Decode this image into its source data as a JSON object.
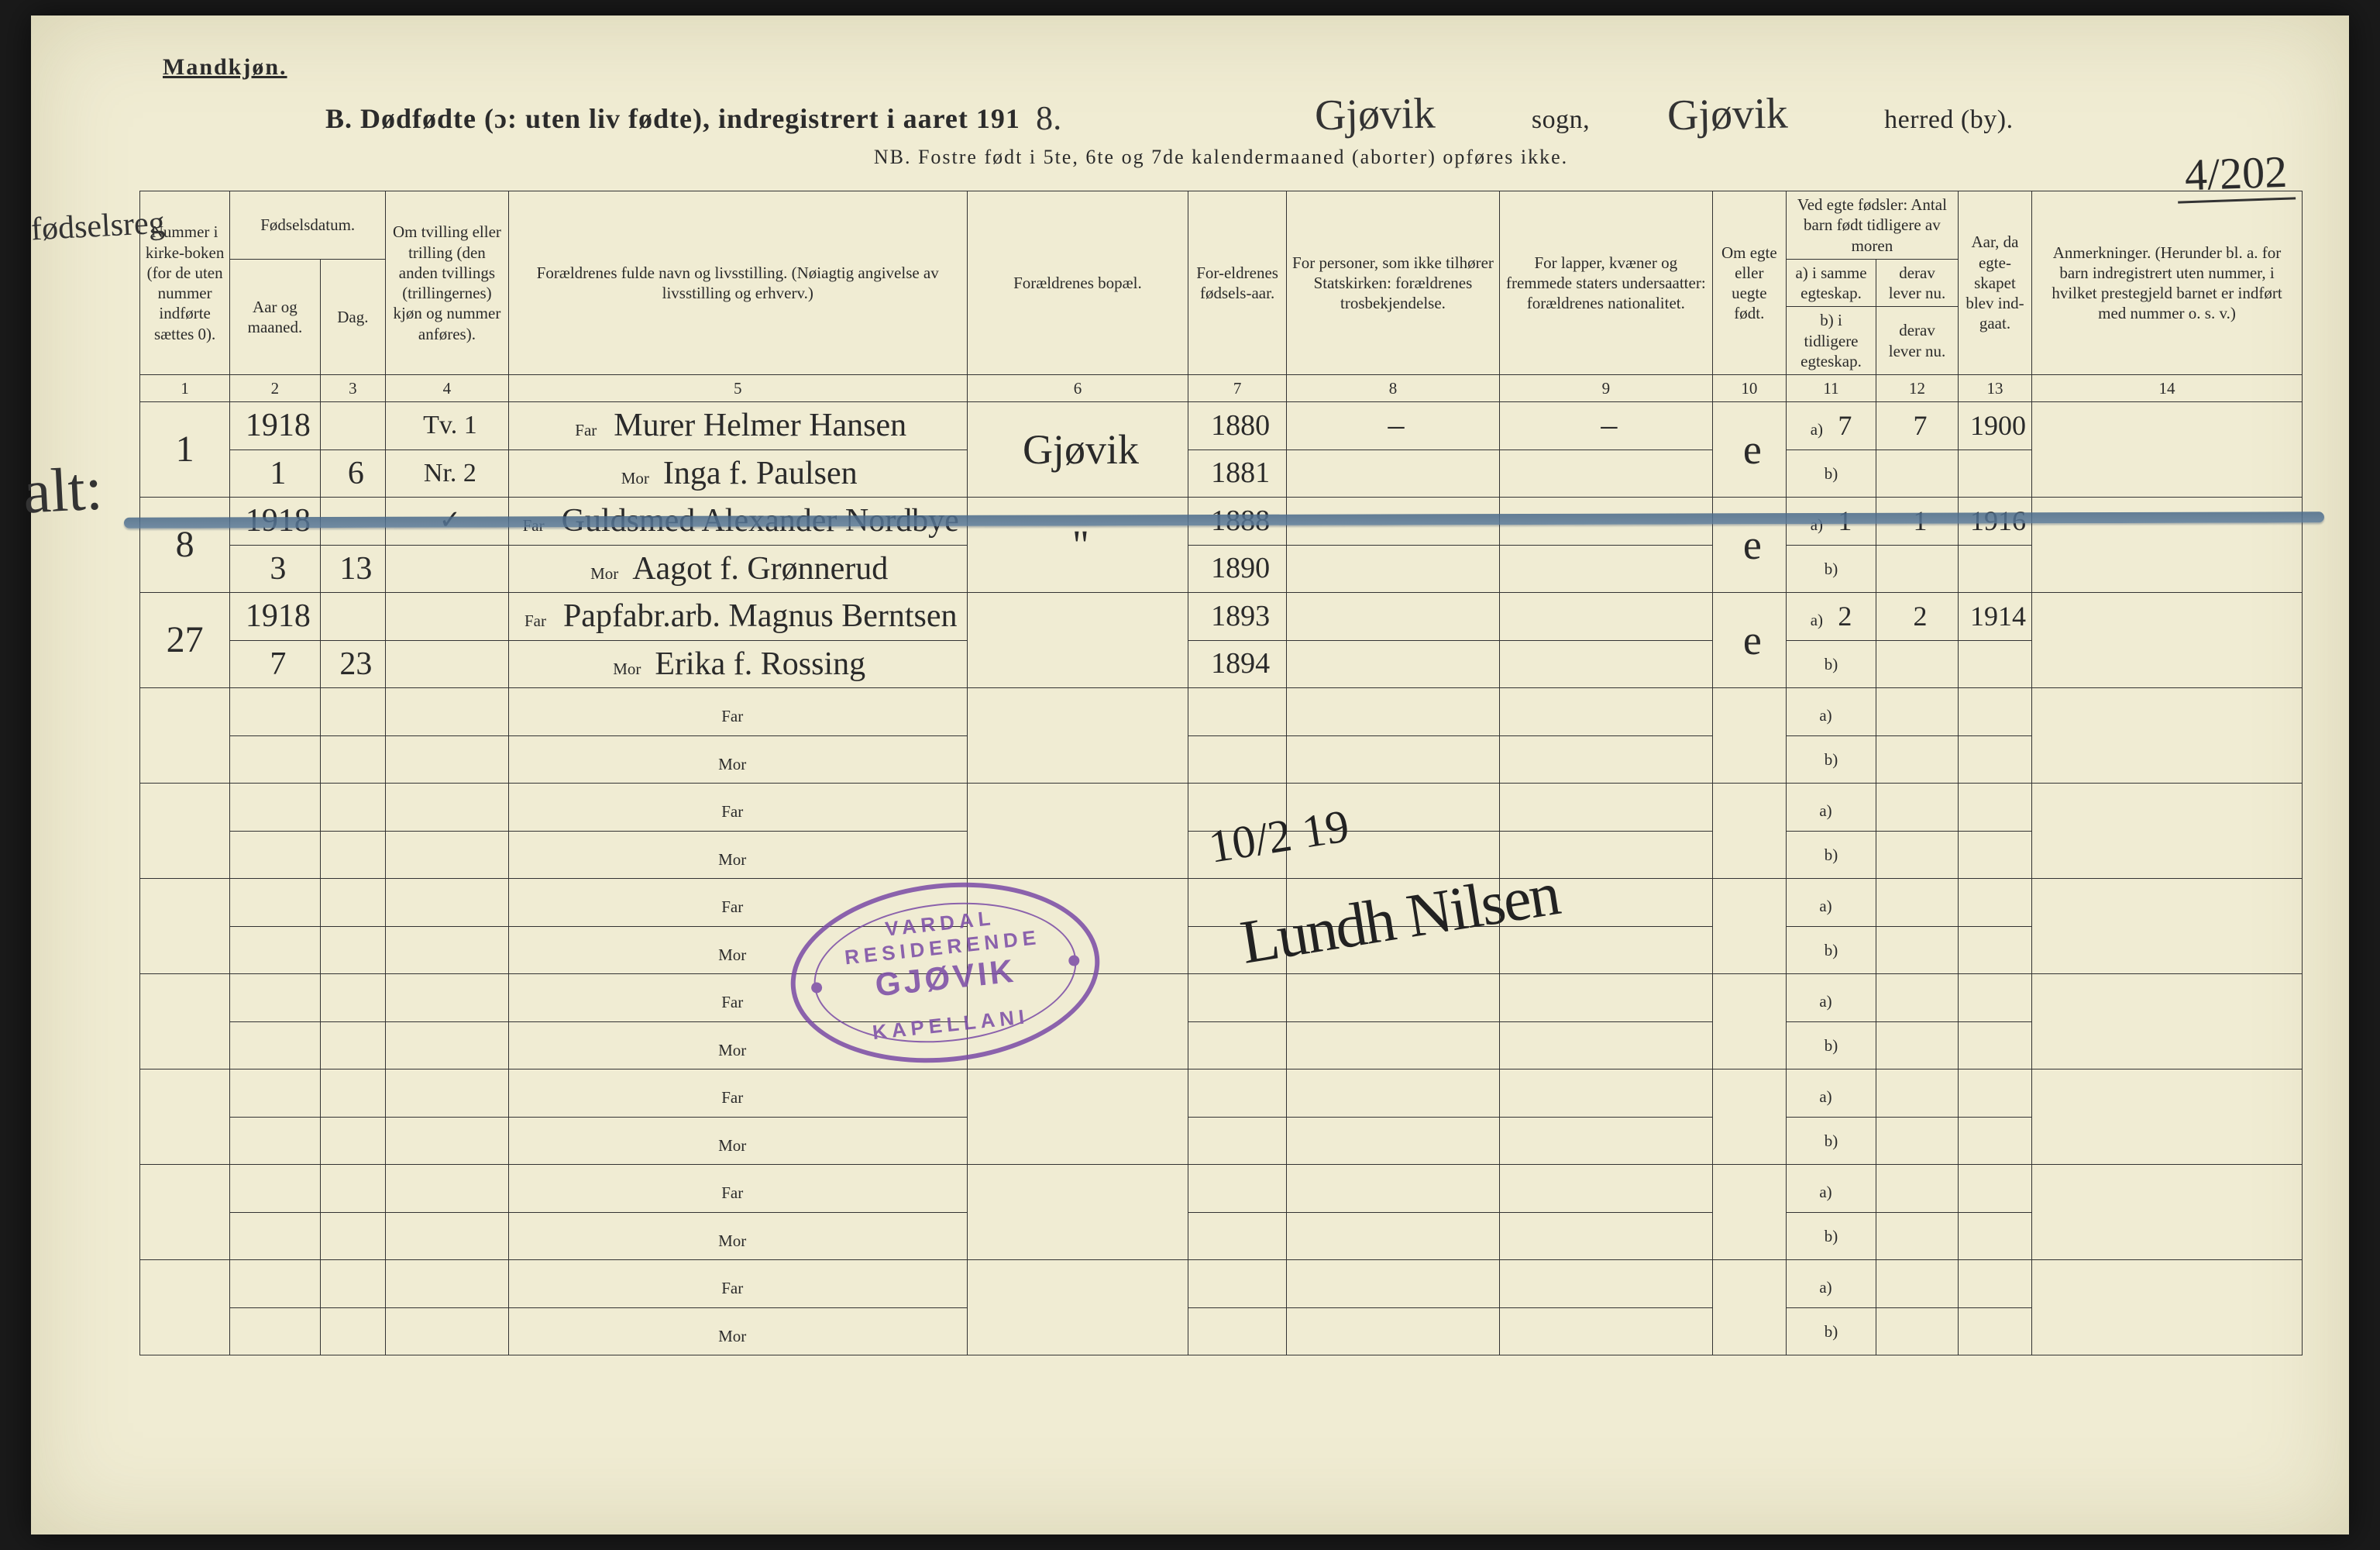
{
  "page": {
    "gender_heading": "Mandkjøn.",
    "title_prefix": "B.  Dødfødte (ɔ: uten liv fødte), indregistrert i aaret 191",
    "year_suffix": "8.",
    "sogn_label": "sogn,",
    "herred_label": "herred (by).",
    "sogn_hw": "Gjøvik",
    "herred_hw": "Gjøvik",
    "nb_line": "NB.  Fostre født i 5te, 6te og 7de kalendermaaned (aborter) opføres ikke.",
    "corner_ref": "4/202",
    "margin_note_left": "fødselsreg",
    "margin_note_alt": "alt:"
  },
  "columns": {
    "c1": "Nummer i kirke-boken (for de uten nummer indførte sættes 0).",
    "c2_top": "Fødselsdatum.",
    "c2a": "Aar og maaned.",
    "c2b": "Dag.",
    "c4": "Om tvilling eller trilling (den anden tvillings (trillingernes) kjøn og nummer anføres).",
    "c5": "Forældrenes fulde navn og livsstilling. (Nøiagtig angivelse av livsstilling og erhverv.)",
    "c6": "Forældrenes bopæl.",
    "c7": "For-eldrenes fødsels-aar.",
    "c8": "For personer, som ikke tilhører Statskirken: forældrenes trosbekjendelse.",
    "c9": "For lapper, kvæner og fremmede staters undersaatter: forældrenes nationalitet.",
    "c10": "Om egte eller uegte født.",
    "c11_top": "Ved egte fødsler: Antal barn født tidligere av moren",
    "c11a": "a) i samme egteskap.",
    "c11b": "b) i tidligere egteskap.",
    "c12a": "derav lever nu.",
    "c12b": "derav lever nu.",
    "c13": "Aar, da egte-skapet blev ind-gaat.",
    "c14": "Anmerkninger. (Herunder bl. a. for barn indregistrert uten nummer, i hvilket prestegjeld barnet er indført med nummer o. s. v.)",
    "nums": [
      "1",
      "2",
      "3",
      "4",
      "5",
      "6",
      "7",
      "8",
      "9",
      "10",
      "11",
      "12",
      "13",
      "14"
    ]
  },
  "far_label": "Far",
  "mor_label": "Mor",
  "ab_a": "a)",
  "ab_b": "b)",
  "records": [
    {
      "num": "1",
      "year": "1918",
      "month": "1",
      "day": "6",
      "twin_top": "Tv. 1",
      "twin_bot": "Nr. 2",
      "far": "Murer Helmer Hansen",
      "mor": "Inga f. Paulsen",
      "bopel": "Gjøvik",
      "far_year": "1880",
      "mor_year": "1881",
      "dash8": "–",
      "dash9": "–",
      "egte": "e",
      "a11": "7",
      "a12": "7",
      "a13": "1900"
    },
    {
      "num": "8",
      "year": "1918",
      "month": "3",
      "day": "13",
      "twin_top": "✓",
      "twin_bot": "",
      "far": "Guldsmed Alexander Nordbye",
      "mor": "Aagot f. Grønnerud",
      "bopel": "\"",
      "far_year": "1888",
      "mor_year": "1890",
      "dash8": "",
      "dash9": "",
      "egte": "e",
      "a11": "1",
      "a12": "1",
      "a13": "1916"
    },
    {
      "num": "27",
      "year": "1918",
      "month": "7",
      "day": "23",
      "twin_top": "",
      "twin_bot": "",
      "far": "Papfabr.arb. Magnus Berntsen",
      "mor": "Erika f. Rossing",
      "bopel": "",
      "far_year": "1893",
      "mor_year": "1894",
      "dash8": "",
      "dash9": "",
      "egte": "e",
      "a11": "2",
      "a12": "2",
      "a13": "1914"
    }
  ],
  "stamp": {
    "top": "VARDAL RESIDERENDE",
    "mid": "GJØVIK",
    "bot": "KAPELLANI"
  },
  "signature": {
    "date": "10/2  19",
    "name": "Lundh Nilsen"
  },
  "colors": {
    "paper": "#f0ecd3",
    "ink": "#2b2b2b",
    "stamp": "#7a4aa6",
    "pencil_strike": "#4a6a8a"
  }
}
